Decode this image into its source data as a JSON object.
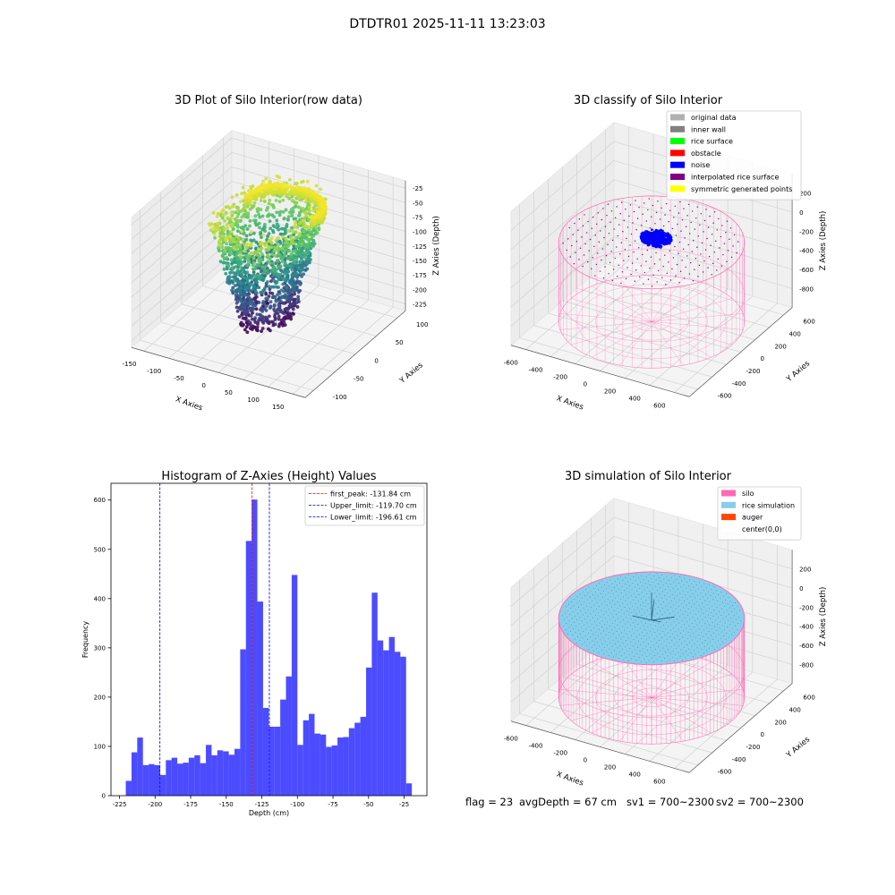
{
  "title": "DTDTR01 2025-11-11 13:23:03",
  "footer": [
    "flag = 23",
    "avgDepth = 67 cm",
    "sv1 = 700~2300",
    "sv2 = 700~2300"
  ],
  "chart_data": [
    {
      "type": "scatter3d",
      "title": "3D Plot of Silo Interior(row data)",
      "xlabel": "X Axies",
      "ylabel": "Y Axies",
      "zlabel": "Z Axies (Depth)",
      "xlim": [
        -175,
        175
      ],
      "ylim": [
        -120,
        120
      ],
      "zlim": [
        -237,
        -12
      ],
      "xticks": [
        -150,
        -100,
        -50,
        0,
        50,
        100,
        150
      ],
      "yticks": [
        -100,
        -50,
        0,
        50,
        100
      ],
      "zticks": [
        -25,
        -50,
        -75,
        -100,
        -125,
        -150,
        -175,
        -200,
        -225
      ]
    },
    {
      "type": "scatter3d",
      "title": "3D classify of Silo Interior",
      "xlabel": "X Axies",
      "ylabel": "Y Axies",
      "zlabel": "Z Axies (Depth)",
      "xlim": [
        -720,
        720
      ],
      "ylim": [
        -720,
        720
      ],
      "zlim": [
        -1000,
        400
      ],
      "xticks": [
        -600,
        -400,
        -200,
        0,
        200,
        400,
        600
      ],
      "yticks": [
        -600,
        -400,
        -200,
        0,
        200,
        400,
        600
      ],
      "zticks": [
        200,
        0,
        -200,
        -400,
        -600,
        -800
      ],
      "legend_loc": "upper right",
      "legend": [
        {
          "name": "original data",
          "color": "#b0b0b0"
        },
        {
          "name": "inner wall",
          "color": "#808080"
        },
        {
          "name": "rice surface",
          "color": "#00ff00"
        },
        {
          "name": "obstacle",
          "color": "#ff0000"
        },
        {
          "name": "noise",
          "color": "#0000ff"
        },
        {
          "name": "interpolated rice surface",
          "color": "#800080"
        },
        {
          "name": "symmetric generated points",
          "color": "#ffff00"
        }
      ]
    },
    {
      "type": "histogram",
      "title": "Histogram of Z-Axies (Height) Values",
      "xlabel": "Depth (cm)",
      "ylabel": "Frequency",
      "color": "#0000ff",
      "xlim": [
        -231,
        -9
      ],
      "ylim": [
        0,
        634
      ],
      "xticks": [
        -225,
        -200,
        -175,
        -150,
        -125,
        -100,
        -75,
        -50,
        -25
      ],
      "yticks": [
        0,
        100,
        200,
        300,
        400,
        500,
        600
      ],
      "bins": [
        -220.6,
        -216.58,
        -212.56,
        -208.54,
        -204.52,
        -200.5,
        -196.48,
        -192.46,
        -188.44,
        -184.42,
        -180.4,
        -176.38,
        -172.36,
        -168.34,
        -164.32,
        -160.3,
        -156.28,
        -152.26,
        -148.24,
        -144.22,
        -140.2,
        -136.18,
        -132.16,
        -128.14,
        -124.12,
        -120.1,
        -116.08,
        -112.06,
        -108.04,
        -104.02,
        -100,
        -95.98,
        -91.96,
        -87.94,
        -83.92,
        -79.9,
        -75.88,
        -71.86,
        -67.84,
        -63.82,
        -59.8,
        -55.78,
        -51.76,
        -47.74,
        -43.72,
        -39.7,
        -35.68,
        -31.66,
        -27.64,
        -23.62,
        -19.6
      ],
      "values": [
        30,
        88,
        118,
        62,
        64,
        62,
        42,
        72,
        77,
        65,
        67,
        77,
        82,
        66,
        103,
        82,
        92,
        90,
        83,
        95,
        297,
        517,
        601,
        394,
        178,
        140,
        140,
        195,
        242,
        448,
        103,
        153,
        166,
        126,
        124,
        99,
        102,
        118,
        119,
        137,
        148,
        160,
        260,
        412,
        315,
        295,
        322,
        292,
        282,
        25
      ],
      "legend_loc": "upper right",
      "lines": [
        {
          "name": "first_peak: -131.84 cm",
          "value": -131.84,
          "color": "#ff0000"
        },
        {
          "name": "Upper_limit: -119.70 cm",
          "value": -119.7,
          "color": "#0000ff"
        },
        {
          "name": "Lower_limit: -196.61 cm",
          "value": -196.61,
          "color": "#0000ff"
        }
      ]
    },
    {
      "type": "scatter3d",
      "title": "3D simulation of Silo Interior",
      "xlabel": "X Axies",
      "ylabel": "Y Axies",
      "zlabel": "Z Axies (Depth)",
      "xlim": [
        -720,
        720
      ],
      "ylim": [
        -720,
        720
      ],
      "zlim": [
        -1000,
        400
      ],
      "xticks": [
        -600,
        -400,
        -200,
        0,
        200,
        400,
        600
      ],
      "yticks": [
        -600,
        -400,
        -200,
        0,
        200,
        400,
        600
      ],
      "zticks": [
        200,
        0,
        -200,
        -400,
        -600,
        -800
      ],
      "legend_loc": "upper right",
      "legend": [
        {
          "name": "silo",
          "color": "#ff69b4"
        },
        {
          "name": "rice simulation",
          "color": "#87ceeb"
        },
        {
          "name": "auger",
          "color": "#ff4500"
        },
        {
          "name": "center(0,0)",
          "color": "#ffffff"
        }
      ]
    }
  ]
}
